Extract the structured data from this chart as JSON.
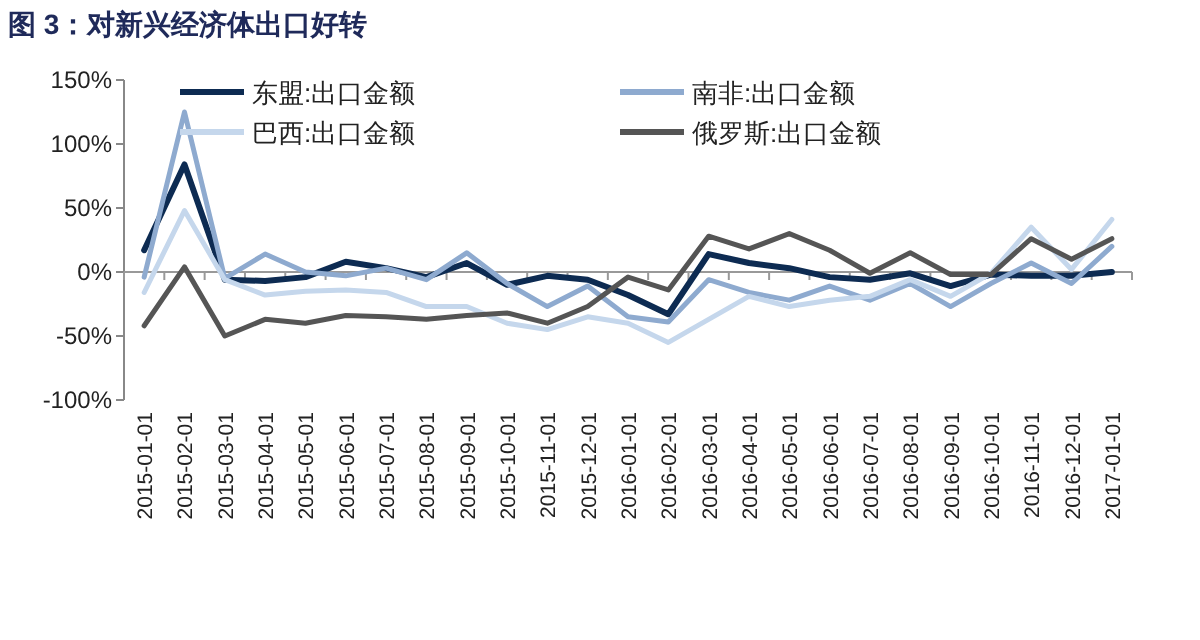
{
  "chart_data": {
    "type": "line",
    "title": "图 3：对新兴经济体出口好转",
    "categories": [
      "2015-01-01",
      "2015-02-01",
      "2015-03-01",
      "2015-04-01",
      "2015-05-01",
      "2015-06-01",
      "2015-07-01",
      "2015-08-01",
      "2015-09-01",
      "2015-10-01",
      "2015-11-01",
      "2015-12-01",
      "2016-01-01",
      "2016-02-01",
      "2016-03-01",
      "2016-04-01",
      "2016-05-01",
      "2016-06-01",
      "2016-07-01",
      "2016-08-01",
      "2016-09-01",
      "2016-10-01",
      "2016-11-01",
      "2016-12-01",
      "2017-01-01"
    ],
    "series": [
      {
        "name": "东盟:出口金额",
        "color": "#0d2b52",
        "values": [
          17,
          84,
          -6,
          -7,
          -4,
          8,
          3,
          -4,
          7,
          -10,
          -3,
          -6,
          -18,
          -33,
          14,
          7,
          3,
          -4,
          -6,
          -1,
          -11,
          -2,
          -3,
          -3,
          0
        ]
      },
      {
        "name": "南非:出口金额",
        "color": "#8eaacf",
        "values": [
          -4,
          125,
          -5,
          14,
          0,
          -3,
          3,
          -6,
          15,
          -9,
          -27,
          -11,
          -35,
          -39,
          -6,
          -16,
          -22,
          -11,
          -22,
          -9,
          -27,
          -9,
          7,
          -9,
          20
        ]
      },
      {
        "name": "巴西:出口金额",
        "color": "#c5d7ec",
        "values": [
          -16,
          48,
          -6,
          -18,
          -15,
          -14,
          -16,
          -27,
          -27,
          -40,
          -45,
          -35,
          -40,
          -55,
          -37,
          -19,
          -27,
          -22,
          -19,
          -6,
          -19,
          -1,
          35,
          2,
          41
        ]
      },
      {
        "name": "俄罗斯:出口金额",
        "color": "#555555",
        "values": [
          -42,
          4,
          -50,
          -37,
          -40,
          -34,
          -35,
          -37,
          -34,
          -32,
          -40,
          -27,
          -4,
          -14,
          28,
          18,
          30,
          17,
          -1,
          15,
          -2,
          -2,
          26,
          10,
          26
        ]
      }
    ],
    "ylim": [
      -100,
      150
    ],
    "yticks": [
      {
        "value": -100,
        "label": "-100%"
      },
      {
        "value": -50,
        "label": "-50%"
      },
      {
        "value": 0,
        "label": "0%"
      },
      {
        "value": 50,
        "label": "50%"
      },
      {
        "value": 100,
        "label": "100%"
      },
      {
        "value": 150,
        "label": "150%"
      }
    ],
    "legend": "top",
    "marker": "none",
    "line_style": "solid"
  }
}
